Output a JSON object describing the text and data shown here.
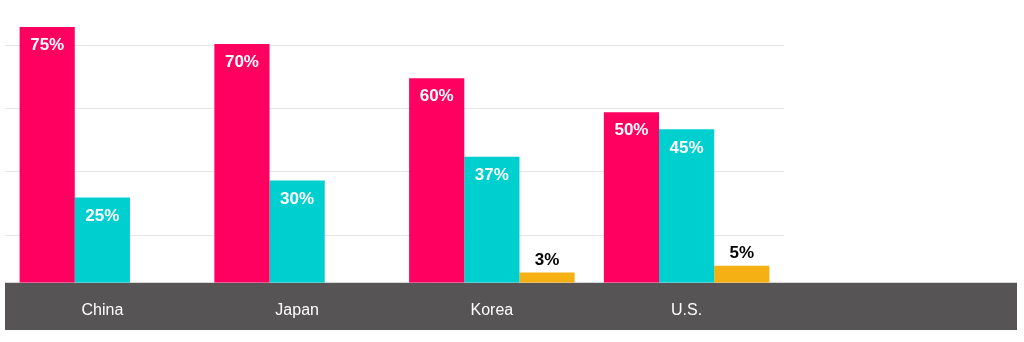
{
  "chart_data": {
    "type": "bar",
    "categories": [
      "China",
      "Japan",
      "Korea",
      "U.S."
    ],
    "series": [
      {
        "color": "#ff0060",
        "values": [
          75,
          70,
          60,
          50
        ],
        "value_labels": [
          "75%",
          "70%",
          "60%",
          "50%"
        ]
      },
      {
        "color": "#00cfcf",
        "values": [
          25,
          30,
          37,
          45
        ],
        "value_labels": [
          "25%",
          "30%",
          "37%",
          "45%"
        ]
      },
      {
        "color": "#f5b014",
        "values": [
          null,
          null,
          3,
          5
        ],
        "value_labels": [
          null,
          null,
          "3%",
          "5%"
        ]
      }
    ],
    "yticks": [
      {
        "value": 14,
        "label": null
      },
      {
        "value": 32.5,
        "label": null
      },
      {
        "value": 51,
        "label": null
      },
      {
        "value": 69.5,
        "label": null
      }
    ],
    "grid": "y",
    "tick_labels": "x",
    "legend": false
  }
}
